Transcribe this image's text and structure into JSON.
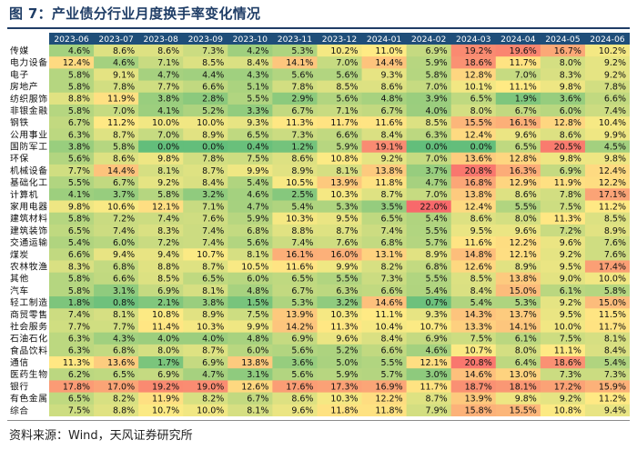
{
  "chart_data": {
    "type": "heatmap",
    "title": "图 7：产业债分行业月度换手率变化情况",
    "source": "资料来源：Wind，天风证券研究所",
    "unit": "%",
    "columns": [
      "2023-06",
      "2023-07",
      "2023-08",
      "2023-09",
      "2023-10",
      "2023-11",
      "2023-12",
      "2024-01",
      "2024-02",
      "2024-03",
      "2024-04",
      "2024-05",
      "2024-06"
    ],
    "rows": [
      "传媒",
      "电力设备",
      "电子",
      "房地产",
      "纺织服饰",
      "非银金融",
      "钢铁",
      "公用事业",
      "国防军工",
      "环保",
      "机械设备",
      "基础化工",
      "计算机",
      "家用电器",
      "建筑材料",
      "建筑装饰",
      "交通运输",
      "煤炭",
      "农林牧渔",
      "其他",
      "汽车",
      "轻工制造",
      "商贸零售",
      "社会服务",
      "石油石化",
      "食品饮料",
      "通信",
      "医药生物",
      "银行",
      "有色金属",
      "综合"
    ],
    "values": [
      [
        4.6,
        8.6,
        8.6,
        7.3,
        4.2,
        5.3,
        10.2,
        11.0,
        6.9,
        19.2,
        19.6,
        16.7,
        10.2
      ],
      [
        12.4,
        4.6,
        7.1,
        8.5,
        8.4,
        14.1,
        7.0,
        14.4,
        5.9,
        18.6,
        11.7,
        8.0,
        9.2
      ],
      [
        5.8,
        9.1,
        4.7,
        4.4,
        4.3,
        5.6,
        5.6,
        9.3,
        5.8,
        12.8,
        7.0,
        8.3,
        9.2
      ],
      [
        5.8,
        7.8,
        7.7,
        6.6,
        5.1,
        7.8,
        8.5,
        8.6,
        7.0,
        10.1,
        11.1,
        9.8,
        7.8
      ],
      [
        8.8,
        11.9,
        3.8,
        2.8,
        5.5,
        2.9,
        5.6,
        4.8,
        3.9,
        6.5,
        1.9,
        3.6,
        6.6
      ],
      [
        5.8,
        7.0,
        4.1,
        5.2,
        3.3,
        6.7,
        7.1,
        6.7,
        4.0,
        8.0,
        6.7,
        6.0,
        7.4
      ],
      [
        6.7,
        11.2,
        10.0,
        10.0,
        9.3,
        11.3,
        11.7,
        11.6,
        8.5,
        15.5,
        16.1,
        12.8,
        10.4
      ],
      [
        6.3,
        8.7,
        7.0,
        8.9,
        6.5,
        7.3,
        6.6,
        8.4,
        6.3,
        12.4,
        9.6,
        8.6,
        9.9
      ],
      [
        3.8,
        5.8,
        0.0,
        0.0,
        0.4,
        1.2,
        5.9,
        19.1,
        0.0,
        0.0,
        6.5,
        20.5,
        4.5
      ],
      [
        5.6,
        8.6,
        9.8,
        7.8,
        7.5,
        8.6,
        10.8,
        9.2,
        7.0,
        13.6,
        12.8,
        9.8,
        9.8
      ],
      [
        7.7,
        14.4,
        8.1,
        8.7,
        9.9,
        8.9,
        8.1,
        13.8,
        3.7,
        20.8,
        16.3,
        6.9,
        12.4
      ],
      [
        5.5,
        6.7,
        9.2,
        8.4,
        5.4,
        10.5,
        13.9,
        11.8,
        4.7,
        16.8,
        12.9,
        11.9,
        12.2
      ],
      [
        4.1,
        3.7,
        5.8,
        3.2,
        4.6,
        2.5,
        10.3,
        8.7,
        7.0,
        13.8,
        8.6,
        7.8,
        17.1
      ],
      [
        9.8,
        10.6,
        12.1,
        7.1,
        4.7,
        5.4,
        5.3,
        3.5,
        22.0,
        12.4,
        5.5,
        7.5,
        11.2
      ],
      [
        5.8,
        7.2,
        7.4,
        7.6,
        5.9,
        10.3,
        9.5,
        6.5,
        5.4,
        8.6,
        8.0,
        11.3,
        8.5
      ],
      [
        6.5,
        7.4,
        8.3,
        7.4,
        6.8,
        8.8,
        8.7,
        7.4,
        5.5,
        9.5,
        9.6,
        7.2,
        8.9
      ],
      [
        5.4,
        6.0,
        7.2,
        7.4,
        5.6,
        7.4,
        7.6,
        6.8,
        5.7,
        11.6,
        12.2,
        9.6,
        7.6
      ],
      [
        6.6,
        9.4,
        9.4,
        10.7,
        8.1,
        16.1,
        16.0,
        13.1,
        8.9,
        14.8,
        12.1,
        9.2,
        7.6
      ],
      [
        8.3,
        6.8,
        8.8,
        8.7,
        10.5,
        11.6,
        9.9,
        8.2,
        6.8,
        12.6,
        8.9,
        9.5,
        17.4
      ],
      [
        5.8,
        6.6,
        8.5,
        6.5,
        6.0,
        6.5,
        5.5,
        7.3,
        5.5,
        8.5,
        13.8,
        9.0,
        10.0
      ],
      [
        5.8,
        3.1,
        6.9,
        8.1,
        4.8,
        6.7,
        6.3,
        6.6,
        5.4,
        8.4,
        15.0,
        6.1,
        5.8
      ],
      [
        1.8,
        0.8,
        2.1,
        3.8,
        1.5,
        5.3,
        3.2,
        14.6,
        0.7,
        5.4,
        5.3,
        9.2,
        15.0
      ],
      [
        7.4,
        8.1,
        10.8,
        8.9,
        7.5,
        13.9,
        10.3,
        11.1,
        9.3,
        14.3,
        13.7,
        9.5,
        11.5
      ],
      [
        7.7,
        7.7,
        11.4,
        10.3,
        9.9,
        14.2,
        11.3,
        10.4,
        10.7,
        13.3,
        14.1,
        10.0,
        11.7
      ],
      [
        6.3,
        4.3,
        4.0,
        4.0,
        4.8,
        6.9,
        9.6,
        8.4,
        6.9,
        7.5,
        6.1,
        7.5,
        8.1
      ],
      [
        6.3,
        6.8,
        8.0,
        8.7,
        6.0,
        5.6,
        5.2,
        6.6,
        4.6,
        10.7,
        8.0,
        11.1,
        8.4
      ],
      [
        11.3,
        13.6,
        1.7,
        6.9,
        13.8,
        3.6,
        5.0,
        5.5,
        12.1,
        20.8,
        6.4,
        18.6,
        5.4
      ],
      [
        6.2,
        6.5,
        6.9,
        4.7,
        3.1,
        5.6,
        5.9,
        5.7,
        3.0,
        14.6,
        13.0,
        7.3,
        7.3
      ],
      [
        17.8,
        17.0,
        19.2,
        19.0,
        12.6,
        17.6,
        17.3,
        16.9,
        11.7,
        18.7,
        18.1,
        17.2,
        15.9
      ],
      [
        6.5,
        8.2,
        11.9,
        8.2,
        6.7,
        8.6,
        10.3,
        12.2,
        8.7,
        13.9,
        9.8,
        9.2,
        11.2
      ],
      [
        7.5,
        8.8,
        10.7,
        10.0,
        8.1,
        9.6,
        11.8,
        11.8,
        7.9,
        15.8,
        15.5,
        10.8,
        9.4
      ]
    ]
  }
}
